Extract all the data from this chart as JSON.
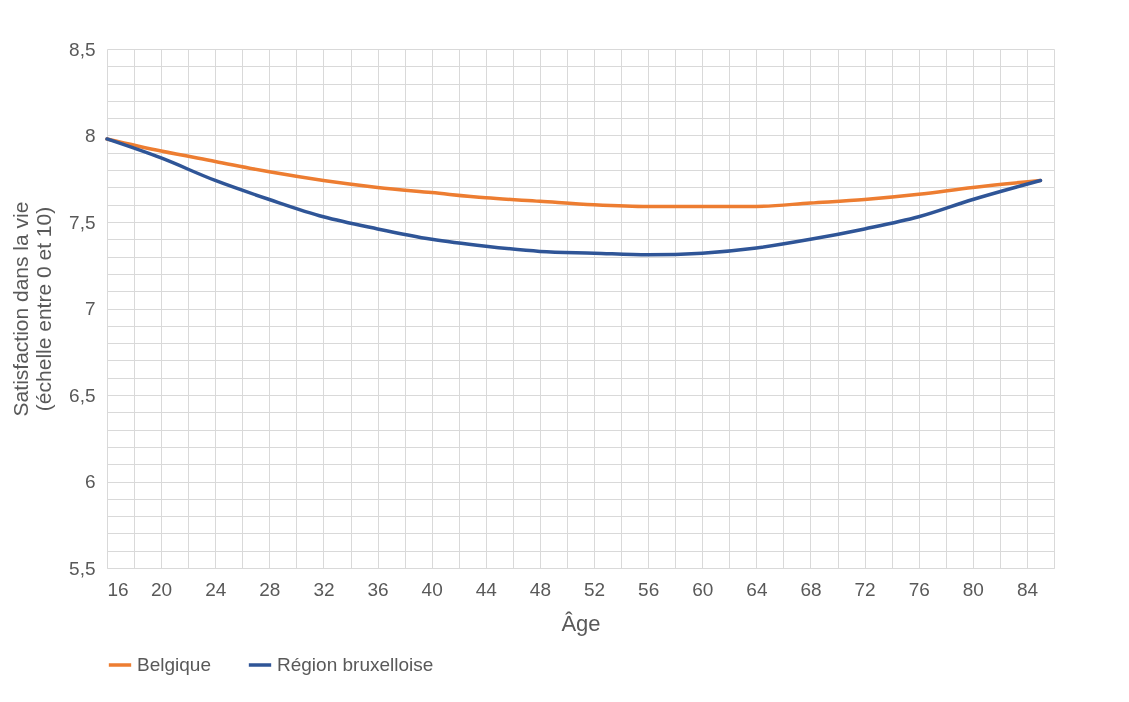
{
  "chart_data": {
    "type": "line",
    "xlabel": "Âge",
    "ylabel": "Satisfaction dans la vie\n(échelle entre 0 et 10)",
    "xlim": [
      16,
      86
    ],
    "xticks": [
      16,
      {
        "value": 18,
        "label": null
      },
      20,
      {
        "value": 22,
        "label": null
      },
      24,
      {
        "value": 26,
        "label": null
      },
      28,
      {
        "value": 30,
        "label": null
      },
      32,
      {
        "value": 34,
        "label": null
      },
      36,
      {
        "value": 38,
        "label": null
      },
      40,
      {
        "value": 42,
        "label": null
      },
      44,
      {
        "value": 46,
        "label": null
      },
      48,
      {
        "value": 50,
        "label": null
      },
      52,
      {
        "value": 54,
        "label": null
      },
      56,
      {
        "value": 58,
        "label": null
      },
      60,
      {
        "value": 62,
        "label": null
      },
      64,
      {
        "value": 66,
        "label": null
      },
      68,
      {
        "value": 70,
        "label": null
      },
      72,
      {
        "value": 74,
        "label": null
      },
      76,
      {
        "value": 78,
        "label": null
      },
      80,
      {
        "value": 82,
        "label": null
      },
      84,
      {
        "value": 86,
        "label": null
      }
    ],
    "ylim": [
      5.5,
      8.5
    ],
    "yticks": [
      {
        "value": 5.5,
        "label": "5,5"
      },
      {
        "value": 5.6,
        "label": null
      },
      {
        "value": 5.7,
        "label": null
      },
      {
        "value": 5.8,
        "label": null
      },
      {
        "value": 5.9,
        "label": null
      },
      6,
      {
        "value": 6.1,
        "label": null
      },
      {
        "value": 6.2,
        "label": null
      },
      {
        "value": 6.3,
        "label": null
      },
      {
        "value": 6.4,
        "label": null
      },
      {
        "value": 6.5,
        "label": "6,5"
      },
      {
        "value": 6.6,
        "label": null
      },
      {
        "value": 6.7,
        "label": null
      },
      {
        "value": 6.8,
        "label": null
      },
      {
        "value": 6.9,
        "label": null
      },
      7,
      {
        "value": 7.1,
        "label": null
      },
      {
        "value": 7.2,
        "label": null
      },
      {
        "value": 7.3,
        "label": null
      },
      {
        "value": 7.4,
        "label": null
      },
      {
        "value": 7.5,
        "label": "7,5"
      },
      {
        "value": 7.6,
        "label": null
      },
      {
        "value": 7.7,
        "label": null
      },
      {
        "value": 7.8,
        "label": null
      },
      {
        "value": 7.9,
        "label": null
      },
      8,
      {
        "value": 8.1,
        "label": null
      },
      {
        "value": 8.2,
        "label": null
      },
      {
        "value": 8.3,
        "label": null
      },
      {
        "value": 8.4,
        "label": null
      },
      {
        "value": 8.5,
        "label": "8,5"
      }
    ],
    "x": [
      16,
      20,
      24,
      28,
      32,
      36,
      40,
      44,
      48,
      52,
      56,
      60,
      64,
      68,
      72,
      76,
      80,
      85
    ],
    "series": [
      {
        "name": "Belgique",
        "color": "#ed7d31",
        "values": [
          7.98,
          7.91,
          7.85,
          7.79,
          7.74,
          7.7,
          7.67,
          7.64,
          7.62,
          7.6,
          7.59,
          7.59,
          7.59,
          7.61,
          7.63,
          7.66,
          7.7,
          7.74
        ]
      },
      {
        "name": "Région bruxelloise",
        "color": "#2f5597",
        "values": [
          7.98,
          7.87,
          7.74,
          7.63,
          7.53,
          7.46,
          7.4,
          7.36,
          7.33,
          7.32,
          7.31,
          7.32,
          7.35,
          7.4,
          7.46,
          7.53,
          7.63,
          7.74
        ]
      }
    ],
    "grid": true,
    "legend": "bottom",
    "marker": "none",
    "line_style": "solid"
  }
}
